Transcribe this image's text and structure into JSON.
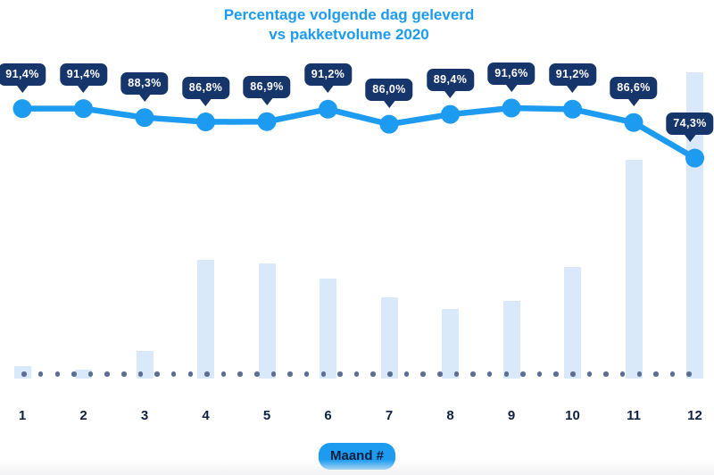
{
  "title": {
    "line1": "Percentage volgende dag geleverd",
    "line2": "vs pakketvolume 2020"
  },
  "x_axis": {
    "badge_label": "Maand #",
    "months": [
      "1",
      "2",
      "3",
      "4",
      "5",
      "6",
      "7",
      "8",
      "9",
      "10",
      "11",
      "12"
    ]
  },
  "colors": {
    "accent_blue": "#1d9bf0",
    "bar_fill": "#d9e9f9",
    "tooltip_bg": "#16356b",
    "axis_label_navy": "#0f2142",
    "baseline_dot": "#5c6f93",
    "badge_text_navy": "#0c1e3d",
    "background": "#ffffff"
  },
  "chart_data": {
    "type": "line",
    "title": "Percentage volgende dag geleverd vs pakketvolume 2020",
    "categories": [
      1,
      2,
      3,
      4,
      5,
      6,
      7,
      8,
      9,
      10,
      11,
      12
    ],
    "xlabel": "Maand #",
    "ylabel": "",
    "legend": false,
    "grid": false,
    "baseline_dotted_line": true,
    "series": [
      {
        "name": "Percentage volgende dag geleverd",
        "type": "line",
        "unit": "%",
        "values": [
          91.4,
          91.4,
          88.3,
          86.8,
          86.9,
          91.2,
          86.0,
          89.4,
          91.6,
          91.2,
          86.6,
          74.3
        ],
        "point_labels": [
          "91,4%",
          "91,4%",
          "88,3%",
          "86,8%",
          "86,9%",
          "91,2%",
          "86,0%",
          "89,4%",
          "91,6%",
          "91,2%",
          "86,6%",
          "74,3%"
        ],
        "color": "#1d9bf0"
      },
      {
        "name": "Pakketvolume 2020",
        "type": "bar",
        "unit": "relatieve index (max = 100, waarden niet gelabeld in grafiek)",
        "values": [
          4.1,
          2.9,
          9.0,
          38.8,
          37.6,
          32.7,
          26.5,
          22.7,
          25.4,
          36.4,
          71.4,
          100
        ],
        "color": "#d9e9f9"
      }
    ]
  }
}
